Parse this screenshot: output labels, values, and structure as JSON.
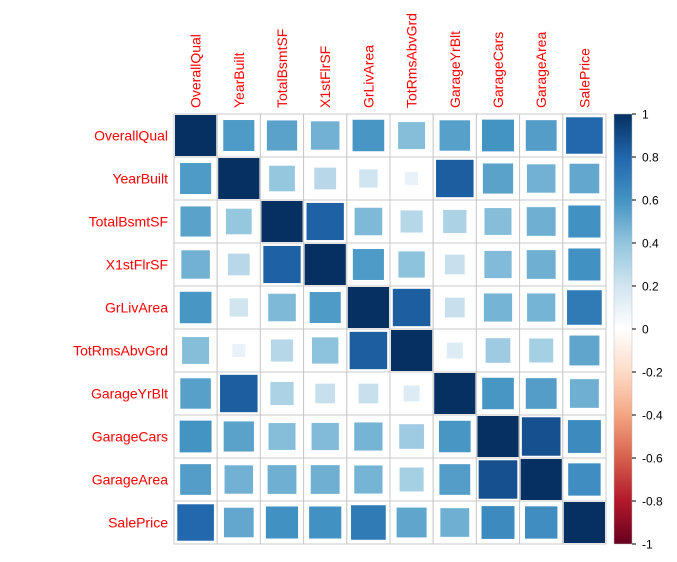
{
  "chart_data": {
    "type": "heatmap",
    "title": "",
    "variables": [
      "OverallQual",
      "YearBuilt",
      "TotalBsmtSF",
      "X1stFlrSF",
      "GrLivArea",
      "TotRmsAbvGrd",
      "GarageYrBlt",
      "GarageCars",
      "GarageArea",
      "SalePrice"
    ],
    "values": [
      [
        1.0,
        0.57,
        0.54,
        0.48,
        0.59,
        0.43,
        0.55,
        0.6,
        0.56,
        0.79
      ],
      [
        0.57,
        1.0,
        0.39,
        0.28,
        0.2,
        0.1,
        0.83,
        0.54,
        0.48,
        0.52
      ],
      [
        0.54,
        0.39,
        1.0,
        0.82,
        0.45,
        0.29,
        0.32,
        0.43,
        0.49,
        0.61
      ],
      [
        0.48,
        0.28,
        0.82,
        1.0,
        0.57,
        0.41,
        0.23,
        0.44,
        0.49,
        0.61
      ],
      [
        0.59,
        0.2,
        0.45,
        0.57,
        1.0,
        0.83,
        0.23,
        0.47,
        0.47,
        0.71
      ],
      [
        0.43,
        0.1,
        0.29,
        0.41,
        0.83,
        1.0,
        0.15,
        0.36,
        0.34,
        0.53
      ],
      [
        0.55,
        0.83,
        0.32,
        0.23,
        0.23,
        0.15,
        1.0,
        0.59,
        0.56,
        0.49
      ],
      [
        0.6,
        0.54,
        0.43,
        0.44,
        0.47,
        0.36,
        0.59,
        1.0,
        0.88,
        0.64
      ],
      [
        0.56,
        0.48,
        0.49,
        0.49,
        0.47,
        0.34,
        0.56,
        0.88,
        1.0,
        0.62
      ],
      [
        0.79,
        0.52,
        0.61,
        0.61,
        0.71,
        0.53,
        0.49,
        0.64,
        0.62,
        1.0
      ]
    ],
    "colorbar": {
      "min": -1,
      "max": 1,
      "ticks": [
        "1",
        "0.8",
        "0.6",
        "0.4",
        "0.2",
        "0",
        "-0.2",
        "-0.4",
        "-0.6",
        "-0.8",
        "-1"
      ],
      "colors": [
        "#67001F",
        "#B2182B",
        "#D6604D",
        "#F4A582",
        "#FDDBC7",
        "#FFFFFF",
        "#D1E5F0",
        "#92C5DE",
        "#4393C3",
        "#2166AC",
        "#053061"
      ]
    },
    "label_color": "#FF0000",
    "grid": true
  }
}
